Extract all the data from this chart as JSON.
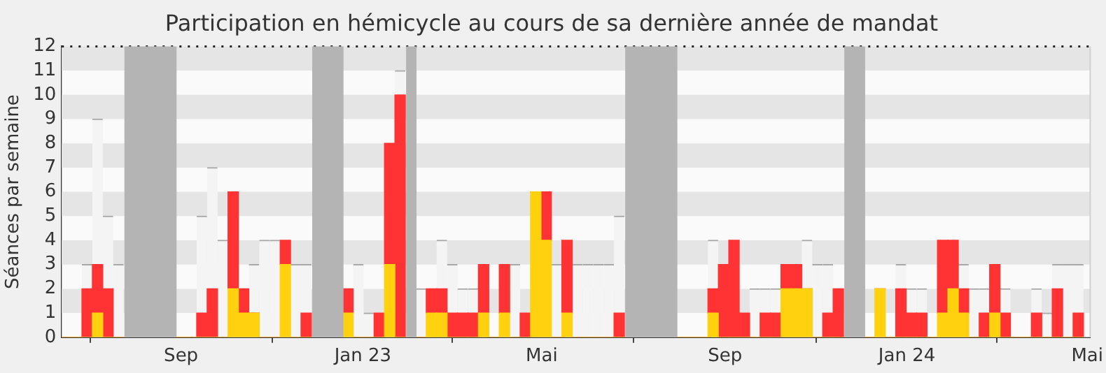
{
  "chart_data": {
    "type": "bar",
    "title": "Participation en hémicycle au cours de sa dernière année de mandat",
    "ylabel": "Séances par semaine",
    "stacked": true,
    "x": [
      "2022-06-16",
      "2022-06-23",
      "2022-06-30",
      "2022-07-07",
      "2022-07-14",
      "2022-07-21",
      "2022-07-28",
      "2022-08-04",
      "2022-08-11",
      "2022-08-18",
      "2022-08-25",
      "2022-09-01",
      "2022-09-08",
      "2022-09-15",
      "2022-09-22",
      "2022-09-29",
      "2022-10-06",
      "2022-10-13",
      "2022-10-20",
      "2022-10-27",
      "2022-11-03",
      "2022-11-10",
      "2022-11-17",
      "2022-11-24",
      "2022-12-01",
      "2022-12-08",
      "2022-12-15",
      "2022-12-22",
      "2022-12-29",
      "2023-01-05",
      "2023-01-12",
      "2023-01-19",
      "2023-01-26",
      "2023-02-02",
      "2023-02-09",
      "2023-02-16",
      "2023-02-23",
      "2023-03-02",
      "2023-03-09",
      "2023-03-16",
      "2023-03-23",
      "2023-03-30",
      "2023-04-06",
      "2023-04-13",
      "2023-04-20",
      "2023-04-27",
      "2023-05-04",
      "2023-05-11",
      "2023-05-18",
      "2023-05-25",
      "2023-06-01",
      "2023-06-08",
      "2023-06-15",
      "2023-06-22",
      "2023-06-29",
      "2023-07-06",
      "2023-07-13",
      "2023-07-20",
      "2023-07-27",
      "2023-08-03",
      "2023-08-10",
      "2023-08-17",
      "2023-08-24",
      "2023-08-31",
      "2023-09-07",
      "2023-09-14",
      "2023-09-21",
      "2023-09-28",
      "2023-10-05",
      "2023-10-12",
      "2023-10-19",
      "2023-10-26",
      "2023-11-02",
      "2023-11-09",
      "2023-11-16",
      "2023-11-23",
      "2023-11-30",
      "2023-12-07",
      "2023-12-14",
      "2023-12-21",
      "2023-12-28",
      "2024-01-04",
      "2024-01-11",
      "2024-01-18",
      "2024-01-25",
      "2024-02-01",
      "2024-02-08",
      "2024-02-15",
      "2024-02-22",
      "2024-02-29",
      "2024-03-07",
      "2024-03-14",
      "2024-03-21",
      "2024-03-28",
      "2024-04-04",
      "2024-04-11",
      "2024-04-18",
      "2024-04-25"
    ],
    "xlim": [
      "2022-06-13",
      "2024-05-03"
    ],
    "xticks": [
      {
        "value": "2022-09-01",
        "label": "Sep"
      },
      {
        "value": "2023-01-01",
        "label": "Jan 23"
      },
      {
        "value": "2023-05-01",
        "label": "Mai"
      },
      {
        "value": "2023-09-01",
        "label": "Sep"
      },
      {
        "value": "2024-01-01",
        "label": "Jan 24"
      },
      {
        "value": "2024-05-01",
        "label": "Mai"
      }
    ],
    "ylim": [
      0,
      12
    ],
    "yticks": [
      0,
      1,
      2,
      3,
      4,
      5,
      6,
      7,
      8,
      9,
      10,
      11,
      12
    ],
    "legend": false,
    "bands": [
      {
        "axis": "x",
        "from": "2022-07-25",
        "to": "2022-08-29",
        "color": "#b4b4b4"
      },
      {
        "axis": "x",
        "from": "2022-11-28",
        "to": "2022-12-19",
        "color": "#b4b4b4"
      },
      {
        "axis": "x",
        "from": "2023-01-30",
        "to": "2023-02-06",
        "color": "#b4b4b4"
      },
      {
        "axis": "x",
        "from": "2023-06-26",
        "to": "2023-07-31",
        "color": "#b4b4b4"
      },
      {
        "axis": "x",
        "from": "2023-11-20",
        "to": "2023-12-04",
        "color": "#b4b4b4"
      }
    ],
    "series": [
      {
        "color": "#ffd10f",
        "values": [
          0,
          0,
          0,
          1,
          0,
          0,
          null,
          null,
          null,
          null,
          null,
          0,
          0,
          0,
          0,
          0,
          2,
          1,
          1,
          0,
          0,
          3,
          0,
          0,
          null,
          null,
          null,
          1,
          0,
          0,
          0,
          3,
          0,
          null,
          0,
          1,
          1,
          0,
          0,
          0,
          1,
          0,
          1,
          0,
          0,
          6,
          4,
          0,
          1,
          0,
          0,
          0,
          0,
          0,
          null,
          null,
          null,
          null,
          null,
          0,
          0,
          0,
          1,
          0,
          0,
          0,
          0,
          0,
          0,
          2,
          2,
          2,
          0,
          0,
          0,
          null,
          null,
          0,
          2,
          0,
          0,
          0,
          0,
          0,
          1,
          2,
          1,
          0,
          0,
          1,
          0,
          0,
          0,
          0,
          0,
          0,
          0,
          0
        ]
      },
      {
        "color": "#ff3333",
        "values": [
          0,
          0,
          2,
          2,
          2,
          0,
          null,
          null,
          null,
          null,
          null,
          0,
          0,
          1,
          2,
          0,
          4,
          1,
          0,
          0,
          0,
          1,
          0,
          1,
          null,
          null,
          null,
          1,
          0,
          0,
          1,
          5,
          10,
          null,
          0,
          1,
          1,
          1,
          1,
          1,
          2,
          0,
          2,
          0,
          1,
          0,
          2,
          0,
          3,
          0,
          0,
          0,
          0,
          1,
          null,
          null,
          null,
          null,
          null,
          0,
          0,
          0,
          1,
          3,
          4,
          1,
          0,
          1,
          1,
          1,
          1,
          0,
          0,
          1,
          2,
          null,
          null,
          0,
          0,
          0,
          2,
          1,
          1,
          0,
          3,
          2,
          1,
          0,
          1,
          2,
          1,
          0,
          0,
          1,
          0,
          2,
          0,
          1
        ]
      },
      {
        "color": "#f4f4f4",
        "values": [
          0,
          0,
          1,
          6,
          3,
          3,
          null,
          null,
          null,
          null,
          null,
          0,
          0,
          4,
          5,
          4,
          0,
          0,
          2,
          4,
          4,
          0,
          3,
          2,
          null,
          null,
          null,
          0,
          3,
          1,
          0,
          0,
          1,
          null,
          2,
          0,
          2,
          2,
          1,
          1,
          0,
          0,
          0,
          3,
          0,
          0,
          0,
          3,
          0,
          3,
          3,
          3,
          3,
          4,
          null,
          null,
          null,
          null,
          null,
          0,
          0,
          0,
          2,
          0,
          0,
          0,
          2,
          1,
          1,
          0,
          0,
          2,
          3,
          2,
          0,
          null,
          null,
          0,
          0,
          0,
          1,
          1,
          1,
          0,
          0,
          0,
          1,
          2,
          1,
          0,
          1,
          0,
          0,
          1,
          1,
          1,
          3,
          2
        ]
      }
    ]
  }
}
